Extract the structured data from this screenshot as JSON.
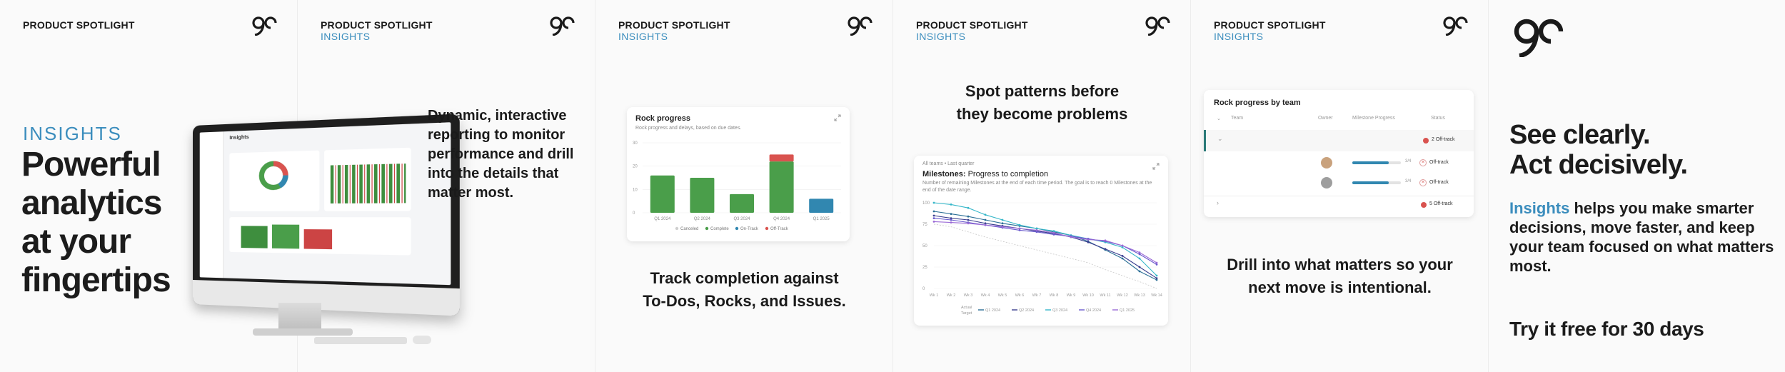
{
  "brand": {
    "accent": "#3b8dbd",
    "dark": "#1a1a1a",
    "complete": "#4a9e4a",
    "offtrack": "#d9534f",
    "ontrack": "#3187b0"
  },
  "panel1": {
    "eyebrow": "PRODUCT SPOTLIGHT",
    "insights_label": "INSIGHTS",
    "headline": [
      "Powerful",
      "analytics",
      "at your",
      "fingertips"
    ],
    "screen_title": "Insights"
  },
  "panel2": {
    "eyebrow": "PRODUCT SPOTLIGHT",
    "sub": "INSIGHTS",
    "body": [
      "Dynamic, interactive",
      "reporting to monitor",
      "performance and drill",
      "into the details that",
      "matter most."
    ]
  },
  "panel3": {
    "eyebrow": "PRODUCT SPOTLIGHT",
    "sub": "INSIGHTS",
    "card_title": "Rock progress",
    "card_subtitle": "Rock progress and delays, based on due dates.",
    "caption": [
      "Track completion against",
      "To-Dos, Rocks, and Issues."
    ],
    "chart_data": {
      "type": "bar",
      "categories": [
        "Q1 2024",
        "Q2 2024",
        "Q3 2024",
        "Q4 2024",
        "Q1 2025"
      ],
      "series": [
        {
          "name": "Canceled",
          "values": [
            0,
            0,
            0,
            0,
            0
          ]
        },
        {
          "name": "Complete",
          "values": [
            16,
            15,
            8,
            22,
            0
          ]
        },
        {
          "name": "On-Track",
          "values": [
            0,
            0,
            0,
            0,
            6
          ]
        },
        {
          "name": "Off-Track",
          "values": [
            0,
            0,
            0,
            3,
            0
          ]
        }
      ],
      "yticks": [
        "30",
        "20",
        "10",
        "0"
      ],
      "ylim": [
        0,
        30
      ],
      "legend": "bottom",
      "colors": [
        "#cfcfcf",
        "#4a9e4a",
        "#3187b0",
        "#d9534f"
      ]
    }
  },
  "panel4": {
    "eyebrow": "PRODUCT SPOTLIGHT",
    "sub": "INSIGHTS",
    "caption": [
      "Spot patterns before",
      "they become problems"
    ],
    "card_overline": "All teams • Last quarter",
    "card_title_prefix": "Milestones:",
    "card_title": "Progress to completion",
    "card_desc": "Number of remaining Milestones at the end of each time period. The goal is to reach 0 Milestones at the end of the date range.",
    "chart_data": {
      "type": "line",
      "x": [
        "Wk 1",
        "Wk 2",
        "Wk 3",
        "Wk 4",
        "Wk 5",
        "Wk 6",
        "Wk 7",
        "Wk 8",
        "Wk 9",
        "Wk 10",
        "Wk 11",
        "Wk 12",
        "Wk 13",
        "Wk 14"
      ],
      "yticks": [
        "100",
        "75",
        "50",
        "25",
        "0"
      ],
      "ylim": [
        0,
        100
      ],
      "series": [
        {
          "name": "Q1 2024",
          "color": "#2b6f96",
          "values": [
            90,
            87,
            84,
            80,
            76,
            73,
            70,
            66,
            62,
            55,
            45,
            35,
            20,
            10
          ]
        },
        {
          "name": "Q2 2024",
          "color": "#3a3f8f",
          "values": [
            85,
            82,
            80,
            76,
            73,
            70,
            67,
            64,
            60,
            54,
            46,
            38,
            25,
            12
          ]
        },
        {
          "name": "Q3 2024",
          "color": "#36b7c9",
          "values": [
            100,
            98,
            94,
            86,
            80,
            74,
            70,
            67,
            62,
            58,
            54,
            48,
            35,
            15
          ]
        },
        {
          "name": "Q4 2024",
          "color": "#6a5acd",
          "values": [
            82,
            80,
            77,
            74,
            71,
            68,
            66,
            63,
            61,
            58,
            55,
            50,
            40,
            28
          ]
        },
        {
          "name": "Q1 2025",
          "color": "#9b6bd6",
          "values": [
            78,
            77,
            76,
            74,
            72,
            70,
            68,
            65,
            60,
            57,
            56,
            50,
            42,
            30
          ]
        },
        {
          "name": "Target",
          "color": "#c8c8c8",
          "values": [
            75,
            72,
            66,
            60,
            55,
            50,
            45,
            40,
            35,
            30,
            22,
            15,
            8,
            0
          ]
        }
      ],
      "legend": "bottom",
      "legend_labels": [
        "Actual",
        "Target",
        "Q1 2024",
        "Q2 2024",
        "Q3 2024",
        "Q4 2024",
        "Q1 2025"
      ]
    }
  },
  "panel5": {
    "eyebrow": "PRODUCT SPOTLIGHT",
    "sub": "INSIGHTS",
    "card_title": "Rock progress by team",
    "columns": [
      "Team",
      "Owner",
      "Milestone Progress",
      "Status"
    ],
    "rows": [
      {
        "status": "2 Off-track",
        "progress": null,
        "pct": ""
      },
      {
        "status": "Off-track",
        "progress": 0.75,
        "pct": "3/4"
      },
      {
        "status": "Off-track",
        "progress": 0.75,
        "pct": "3/4"
      },
      {
        "status": "5 Off-track",
        "progress": null,
        "pct": ""
      }
    ],
    "caption": [
      "Drill into what matters so your",
      "next move is intentional."
    ]
  },
  "panel6": {
    "headline": [
      "See clearly.",
      "Act decisively."
    ],
    "body_accent": "Insights",
    "body_rest": " helps you make smarter decisions, move faster, and keep your team focused on what matters most.",
    "cta": "Try it free for 30 days"
  }
}
